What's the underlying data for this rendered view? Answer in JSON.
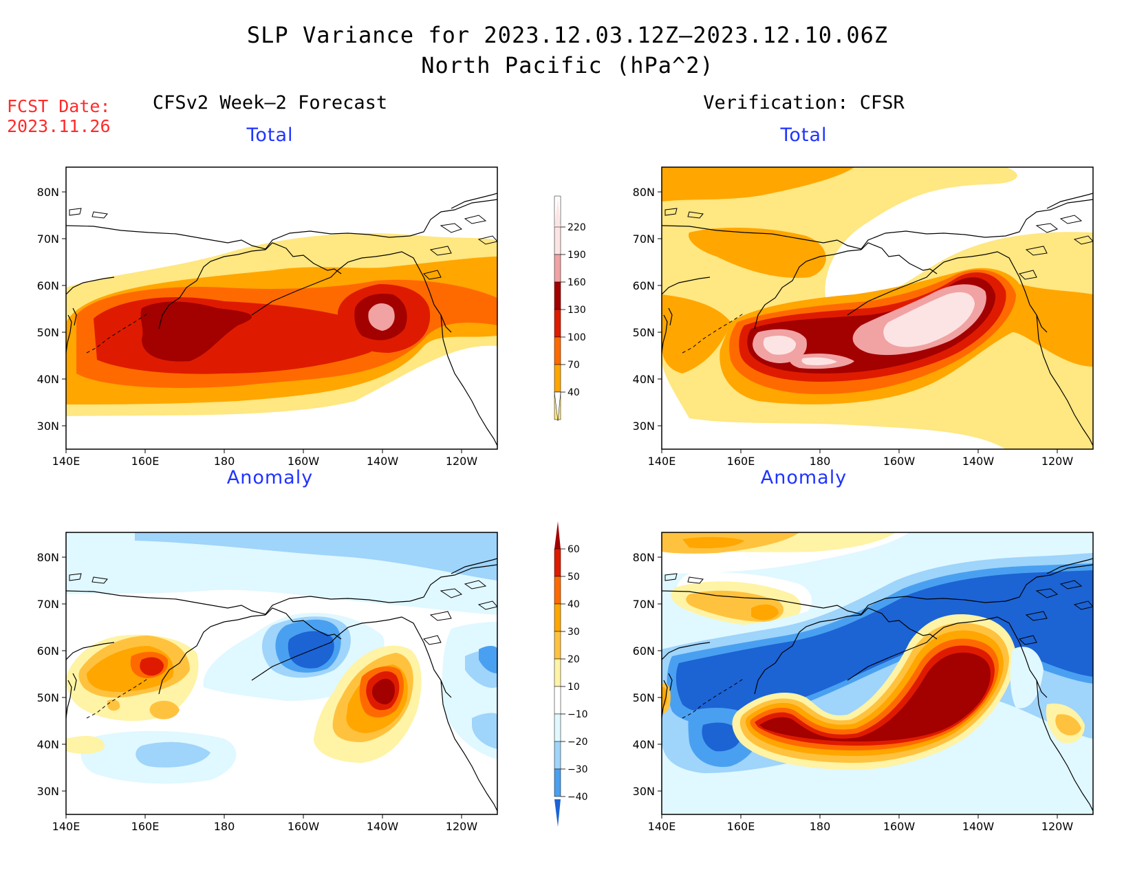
{
  "title_line1": "SLP Variance for 2023.12.03.12Z–2023.12.10.06Z",
  "title_line2": "North Pacific (hPa^2)",
  "fcst_label": "FCST Date:",
  "fcst_date": "2023.11.26",
  "left_column_title": "CFSv2 Week–2 Forecast",
  "right_column_title": "Verification: CFSR",
  "panels": {
    "top_left": "Total",
    "top_right": "Total",
    "bottom_left": "Anomaly",
    "bottom_right": "Anomaly"
  },
  "axes": {
    "lat_labels": [
      "80N",
      "70N",
      "60N",
      "50N",
      "40N",
      "30N"
    ],
    "lon_labels": [
      "140E",
      "160E",
      "180",
      "160W",
      "140W",
      "120W"
    ]
  },
  "total_colorbar": {
    "labels": [
      "220",
      "190",
      "160",
      "130",
      "100",
      "70",
      "40"
    ],
    "colors": [
      "#fde4e4",
      "#f1a2a3",
      "#a30000",
      "#de1b00",
      "#ff6a00",
      "#ffa600",
      "#ffe781"
    ]
  },
  "anomaly_colorbar": {
    "labels": [
      "60",
      "50",
      "40",
      "30",
      "20",
      "10",
      "−10",
      "−20",
      "−30",
      "−40"
    ],
    "colors": [
      "#a30000",
      "#de1b00",
      "#ff6a00",
      "#ffa600",
      "#ffc23f",
      "#fff3a5",
      "#ffffff",
      "#e0f8ff",
      "#9fd4fb",
      "#4aa0f0",
      "#1c63d4"
    ]
  }
}
